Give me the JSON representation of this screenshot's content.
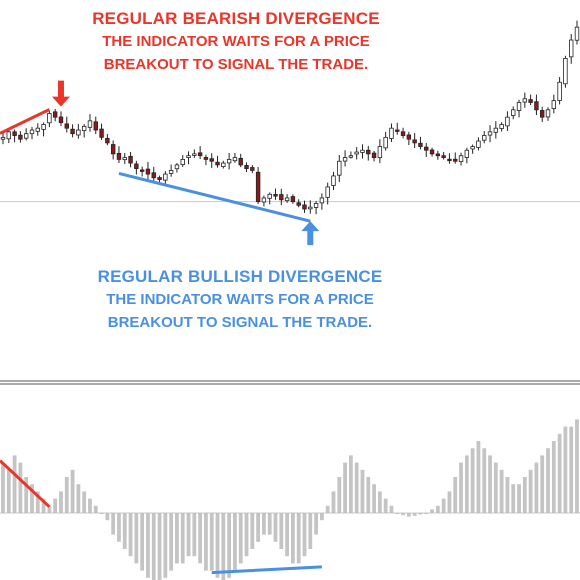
{
  "annotations": {
    "bearish": {
      "title": "REGULAR BEARISH DIVERGENCE",
      "line1": "THE INDICATOR WAITS FOR A PRICE",
      "line2": "BREAKOUT TO SIGNAL THE TRADE.",
      "color": "#e8362b"
    },
    "bullish": {
      "title": "REGULAR BULLISH DIVERGENCE",
      "line1": "THE INDICATOR WAITS FOR A PRICE",
      "line2": "BREAKOUT TO SIGNAL THE TRADE.",
      "color": "#4a90e2"
    }
  },
  "chart_data": [
    {
      "type": "candlestick",
      "title": "",
      "xlabel": "",
      "ylabel": "",
      "grid": false,
      "closes": [
        45,
        48,
        46,
        44,
        47,
        49,
        50,
        52,
        58,
        56,
        53,
        50,
        47,
        49,
        51,
        54,
        49,
        45,
        42,
        36,
        33,
        34,
        31,
        28,
        27,
        25,
        23,
        22,
        25,
        27,
        30,
        33,
        35,
        36,
        35,
        33,
        32,
        30,
        31,
        33,
        34,
        30,
        28,
        27,
        10,
        12,
        14,
        13,
        11,
        12,
        10,
        8,
        6,
        7,
        9,
        12,
        18,
        24,
        32,
        34,
        35,
        37,
        38,
        36,
        34,
        40,
        45,
        50,
        49,
        46,
        44,
        42,
        40,
        38,
        36,
        35,
        34,
        33,
        32,
        35,
        38,
        40,
        43,
        46,
        48,
        50,
        52,
        56,
        60,
        64,
        66,
        64,
        60,
        56,
        60,
        65,
        75,
        88,
        98,
        105
      ],
      "reference_level": 10,
      "divergence_lines": [
        {
          "from_index": 0,
          "to_index": 8,
          "color": "#e8362b"
        },
        {
          "from_index": 20,
          "to_index": 53,
          "color": "#4a90e2"
        }
      ],
      "arrows": [
        {
          "index": 10,
          "direction": "down",
          "color": "#e8362b"
        },
        {
          "index": 53,
          "direction": "up",
          "color": "#4a90e2"
        }
      ]
    },
    {
      "type": "bar",
      "title": "",
      "xlabel": "",
      "ylabel": "",
      "grid": false,
      "zero_line": 0,
      "values": [
        7,
        6,
        8,
        7,
        5,
        4,
        3,
        2,
        1,
        2,
        3,
        5,
        6,
        4,
        3,
        2,
        1,
        0,
        -1,
        -3,
        -4,
        -5,
        -6,
        -7,
        -8,
        -9,
        -10,
        -10,
        -9,
        -8,
        -7,
        -7,
        -6,
        -6,
        -7,
        -8,
        -8,
        -9,
        -10,
        -9,
        -8,
        -7,
        -6,
        -5,
        -4,
        -3,
        -3,
        -4,
        -5,
        -6,
        -7,
        -7,
        -6,
        -5,
        -3,
        -1,
        1,
        3,
        5,
        7,
        8,
        7,
        6,
        5,
        4,
        3,
        2,
        1,
        0,
        -0.3,
        -0.5,
        -0.4,
        -0.2,
        0,
        0.5,
        1,
        2,
        3,
        5,
        7,
        8,
        9,
        10,
        9,
        8,
        7,
        6,
        5,
        4,
        4,
        5,
        6,
        7,
        8,
        9,
        10,
        11,
        12,
        12,
        13
      ],
      "divergence_lines": [
        {
          "from_index": 0,
          "to_index": 8,
          "color": "#e8362b"
        },
        {
          "from_index": 36,
          "to_index": 55,
          "color": "#4a90e2"
        }
      ]
    }
  ]
}
